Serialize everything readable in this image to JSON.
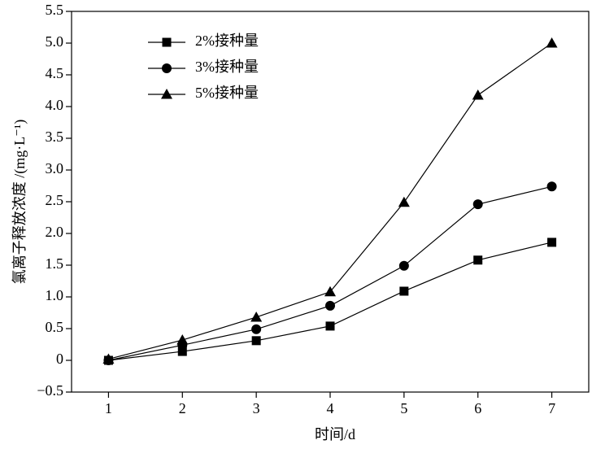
{
  "chart_data": {
    "type": "line",
    "x_label": "时间/d",
    "y_label": "氯离子释放浓度 /(mg·L⁻¹)",
    "x": [
      1,
      2,
      3,
      4,
      5,
      6,
      7
    ],
    "xlim": [
      0.5,
      7.5
    ],
    "xticks": [
      1,
      2,
      3,
      4,
      5,
      6,
      7
    ],
    "ylim": [
      -0.5,
      5.5
    ],
    "yticks": [
      {
        "value": -0.5,
        "label": "−0.5"
      },
      0,
      0.5,
      {
        "value": 1,
        "label": "1.0"
      },
      1.5,
      {
        "value": 2,
        "label": "2.0"
      },
      2.5,
      {
        "value": 3,
        "label": "3.0"
      },
      3.5,
      {
        "value": 4,
        "label": "4.0"
      },
      4.5,
      {
        "value": 5,
        "label": "5.0"
      },
      5.5
    ],
    "legend": "upper left",
    "series": [
      {
        "name": "2%接种量",
        "color": "#000000",
        "marker": "square",
        "values": [
          0,
          0.14,
          0.31,
          0.54,
          1.09,
          1.58,
          1.86
        ]
      },
      {
        "name": "3%接种量",
        "color": "#000000",
        "marker": "circle",
        "values": [
          0,
          0.24,
          0.49,
          0.86,
          1.49,
          2.46,
          2.74
        ]
      },
      {
        "name": "5%接种量",
        "color": "#000000",
        "marker": "triangle",
        "values": [
          0.02,
          0.32,
          0.68,
          1.08,
          2.49,
          4.18,
          5.0
        ]
      }
    ]
  }
}
